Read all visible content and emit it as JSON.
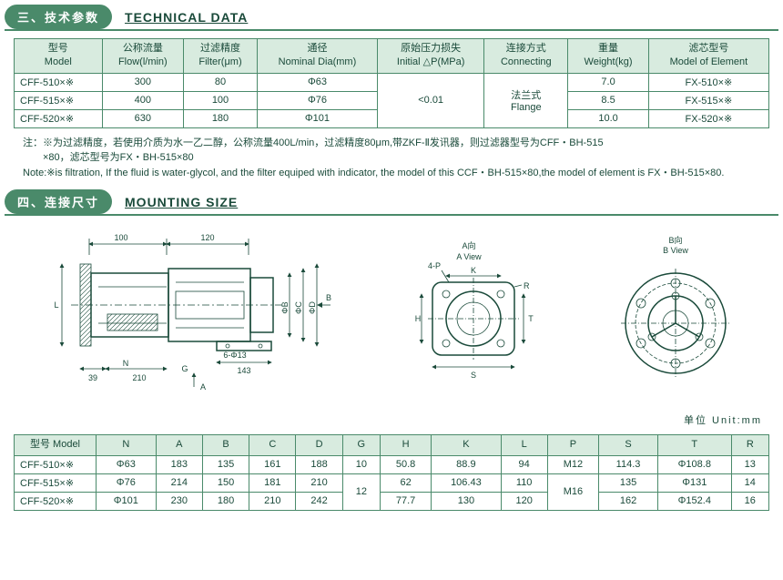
{
  "section1": {
    "badge": "三、技术参数",
    "title_en": "TECHNICAL DATA"
  },
  "table1": {
    "headers": [
      {
        "cn": "型号",
        "en": "Model"
      },
      {
        "cn": "公称流量",
        "en": "Flow(l/min)"
      },
      {
        "cn": "过滤精度",
        "en": "Filter(μm)"
      },
      {
        "cn": "通径",
        "en": "Nominal Dia(mm)"
      },
      {
        "cn": "原始压力损失",
        "en": "Initial △P(MPa)"
      },
      {
        "cn": "连接方式",
        "en": "Connecting"
      },
      {
        "cn": "重量",
        "en": "Weight(kg)"
      },
      {
        "cn": "滤芯型号",
        "en": "Model of Element"
      }
    ],
    "rows": [
      [
        "CFF-510×※",
        "300",
        "80",
        "Φ63",
        "",
        "",
        "7.0",
        "FX-510×※"
      ],
      [
        "CFF-515×※",
        "400",
        "100",
        "Φ76",
        "",
        "",
        "8.5",
        "FX-515×※"
      ],
      [
        "CFF-520×※",
        "630",
        "180",
        "Φ101",
        "",
        "",
        "10.0",
        "FX-520×※"
      ]
    ],
    "merged_pressure": "<0.01",
    "merged_connect_cn": "法兰式",
    "merged_connect_en": "Flange"
  },
  "notes": {
    "line1": "注：※为过滤精度，若使用介质为水一乙二醇，公称流量400L/min，过滤精度80μm,带ZKF-Ⅱ发讯器，则过滤器型号为CFF・BH-515",
    "line2": "　　×80，滤芯型号为FX・BH-515×80",
    "line3": "Note:※is filtration, If the fluid is water-glycol, and the filter equiped with indicator, the model of this CCF・BH-515×80,the model of element is FX・BH-515×80."
  },
  "section2": {
    "badge": "四、连接尺寸",
    "title_en": "MOUNTING SIZE"
  },
  "diagram": {
    "dim_100": "100",
    "dim_120": "120",
    "dim_39": "39",
    "dim_210": "210",
    "dim_143": "143",
    "label_L": "L",
    "label_N": "N",
    "label_G": "G",
    "label_A": "A",
    "label_B": "B",
    "label_phiB": "ΦB",
    "label_phiC": "ΦC",
    "label_phiD": "ΦD",
    "label_6phi13": "6-Φ13",
    "label_4P": "4-P",
    "label_AView_cn": "A向",
    "label_AView_en": "A View",
    "label_BView_cn": "B向",
    "label_BView_en": "B View",
    "label_K": "K",
    "label_R": "R",
    "label_H": "H",
    "label_T": "T",
    "label_S": "S"
  },
  "unit": "单位 Unit:mm",
  "table2": {
    "headers": [
      "型号 Model",
      "N",
      "A",
      "B",
      "C",
      "D",
      "G",
      "H",
      "K",
      "L",
      "P",
      "S",
      "T",
      "R"
    ],
    "rows": [
      [
        "CFF-510×※",
        "Φ63",
        "183",
        "135",
        "161",
        "188",
        "10",
        "50.8",
        "88.9",
        "94",
        "M12",
        "114.3",
        "Φ108.8",
        "13"
      ],
      [
        "CFF-515×※",
        "Φ76",
        "214",
        "150",
        "181",
        "210",
        "",
        "62",
        "106.43",
        "110",
        "",
        "135",
        "Φ131",
        "14"
      ],
      [
        "CFF-520×※",
        "Φ101",
        "230",
        "180",
        "210",
        "242",
        "",
        "77.7",
        "130",
        "120",
        "",
        "162",
        "Φ152.4",
        "16"
      ]
    ],
    "merged_G": "12",
    "merged_P": "M16"
  }
}
